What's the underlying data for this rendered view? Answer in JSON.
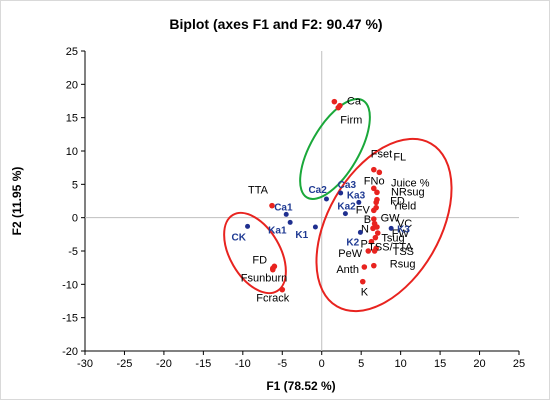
{
  "chart_data": {
    "type": "scatter",
    "title": "Biplot (axes F1 and F2: 90.47 %)",
    "xlabel": "F1 (78.52 %)",
    "ylabel": "F2 (11.95 %)",
    "xlim": [
      -30,
      25
    ],
    "ylim": [
      -20,
      25
    ],
    "xticks": [
      -30,
      -25,
      -20,
      -15,
      -10,
      -5,
      0,
      5,
      10,
      15,
      20,
      25
    ],
    "yticks": [
      -20,
      -15,
      -10,
      -5,
      0,
      5,
      10,
      15,
      20,
      25
    ],
    "grid": false,
    "colors": {
      "variables": "#e8231f",
      "observations": "#1f2f8f",
      "ellipse_red": "#e8231f",
      "ellipse_green": "#1aa83a",
      "axis_zero": "#bfbfbf"
    },
    "variables": [
      {
        "label": "Ca",
        "x": 2.3,
        "y": 16.8
      },
      {
        "label": "",
        "x": 1.6,
        "y": 17.4
      },
      {
        "label": "Firm",
        "x": 2.1,
        "y": 16.5
      },
      {
        "label": "Fset",
        "x": 6.6,
        "y": 7.2
      },
      {
        "label": "FL",
        "x": 7.3,
        "y": 6.8
      },
      {
        "label": "FNo",
        "x": 6.6,
        "y": 4.4
      },
      {
        "label": "Juice %",
        "x": 7.0,
        "y": 3.8
      },
      {
        "label": "NRsug",
        "x": 7.0,
        "y": 2.7
      },
      {
        "label": "FD",
        "x": 6.9,
        "y": 2.3
      },
      {
        "label": "Yield",
        "x": 6.9,
        "y": 1.5
      },
      {
        "label": "FV",
        "x": 6.6,
        "y": 1.1
      },
      {
        "label": "B",
        "x": 6.6,
        "y": -0.2
      },
      {
        "label": "GW",
        "x": 6.7,
        "y": -0.9
      },
      {
        "label": "VC",
        "x": 7.0,
        "y": -1.4
      },
      {
        "label": "N",
        "x": 6.5,
        "y": -1.6
      },
      {
        "label": "FW",
        "x": 7.1,
        "y": -2.3
      },
      {
        "label": "Tsug",
        "x": 6.8,
        "y": -3.0
      },
      {
        "label": "P",
        "x": 6.3,
        "y": -3.6
      },
      {
        "label": "TSS/TTA",
        "x": 6.9,
        "y": -4.6
      },
      {
        "label": "TSS",
        "x": 6.7,
        "y": -5.0
      },
      {
        "label": "PeW",
        "x": 5.9,
        "y": -5.0
      },
      {
        "label": "Rsug",
        "x": 6.6,
        "y": -7.2
      },
      {
        "label": "Anth",
        "x": 5.4,
        "y": -7.4
      },
      {
        "label": "K",
        "x": 5.2,
        "y": -9.6
      },
      {
        "label": "TTA",
        "x": -6.3,
        "y": 1.8
      },
      {
        "label": "FD",
        "x": -6.0,
        "y": -7.3
      },
      {
        "label": "",
        "x": -6.2,
        "y": -7.6
      },
      {
        "label": "Fsunburn",
        "x": -6.2,
        "y": -7.8
      },
      {
        "label": "Fcrack",
        "x": -5.0,
        "y": -10.8
      }
    ],
    "observations": [
      {
        "label": "Ca3",
        "x": 2.4,
        "y": 3.7
      },
      {
        "label": "Ca2",
        "x": 0.6,
        "y": 2.8
      },
      {
        "label": "Ka3",
        "x": 4.7,
        "y": 2.3
      },
      {
        "label": "Ka2",
        "x": 3.0,
        "y": 0.6
      },
      {
        "label": "Ca1",
        "x": -4.5,
        "y": 0.5
      },
      {
        "label": "CK",
        "x": -9.4,
        "y": -1.3
      },
      {
        "label": "Ka1",
        "x": -4.0,
        "y": -0.7
      },
      {
        "label": "K1",
        "x": -0.8,
        "y": -1.4
      },
      {
        "label": "K2",
        "x": 4.9,
        "y": -2.2
      },
      {
        "label": "K3",
        "x": 8.8,
        "y": -1.6
      }
    ]
  }
}
